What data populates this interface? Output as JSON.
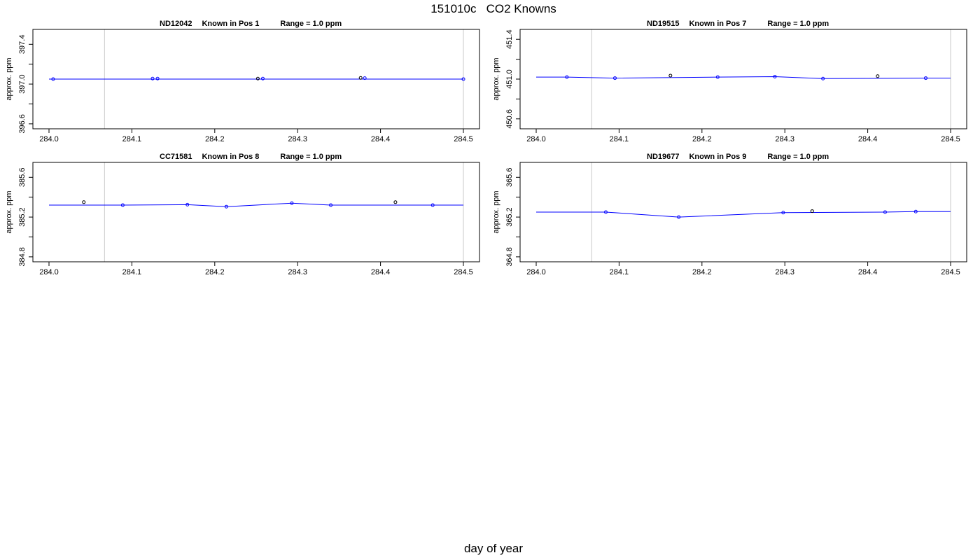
{
  "figure": {
    "title": "151010c   CO2 Knowns",
    "xlabel": "day of year"
  },
  "chart_data": [
    {
      "type": "scatter",
      "title_parts": [
        "ND12042",
        "Known in Pos 1",
        "Range = 1.0 ppm"
      ],
      "ylabel": "approx. ppm",
      "xlim": [
        284.0,
        284.5
      ],
      "ylim": [
        396.55,
        397.55
      ],
      "xticks": [
        "284.0",
        "284.1",
        "284.2",
        "284.3",
        "284.4",
        "284.5"
      ],
      "yticks": [
        "396.6",
        "397.0",
        "397.4"
      ],
      "vlines": [
        284.067,
        284.5
      ],
      "fit_line": {
        "x": [
          284.0,
          284.5
        ],
        "y": [
          397.05,
          397.05
        ]
      },
      "series": [
        {
          "color": "#0000ff",
          "points": [
            [
              284.005,
              397.05
            ],
            [
              284.125,
              397.055
            ],
            [
              284.131,
              397.055
            ],
            [
              284.258,
              397.055
            ],
            [
              284.381,
              397.06
            ],
            [
              284.5,
              397.05
            ]
          ]
        },
        {
          "color": "#000000",
          "points": [
            [
              284.252,
              397.055
            ],
            [
              284.376,
              397.062
            ]
          ]
        }
      ]
    },
    {
      "type": "scatter",
      "title_parts": [
        "ND19515",
        "Known in Pos 7",
        "Range = 1.0 ppm"
      ],
      "ylabel": "approx. ppm",
      "xlim": [
        284.0,
        284.5
      ],
      "ylim": [
        450.5,
        451.5
      ],
      "xticks": [
        "284.0",
        "284.1",
        "284.2",
        "284.3",
        "284.4",
        "284.5"
      ],
      "yticks": [
        "450.6",
        "451.0",
        "451.4"
      ],
      "vlines": [
        284.067,
        284.5
      ],
      "fit_line": {
        "x": [
          284.0,
          284.037,
          284.095,
          284.219,
          284.288,
          284.346,
          284.47,
          284.5
        ],
        "y": [
          451.02,
          451.02,
          451.01,
          451.02,
          451.025,
          451.005,
          451.01,
          451.01
        ]
      },
      "series": [
        {
          "color": "#0000ff",
          "points": [
            [
              284.037,
              451.02
            ],
            [
              284.095,
              451.01
            ],
            [
              284.219,
              451.02
            ],
            [
              284.288,
              451.025
            ],
            [
              284.346,
              451.005
            ],
            [
              284.47,
              451.01
            ]
          ]
        },
        {
          "color": "#000000",
          "points": [
            [
              284.162,
              451.035
            ],
            [
              284.412,
              451.03
            ]
          ]
        }
      ]
    },
    {
      "type": "scatter",
      "title_parts": [
        "CC71581",
        "Known in Pos 8",
        "Range = 1.0 ppm"
      ],
      "ylabel": "approx. ppm",
      "xlim": [
        284.0,
        284.5
      ],
      "ylim": [
        384.75,
        385.75
      ],
      "xticks": [
        "284.0",
        "284.1",
        "284.2",
        "284.3",
        "284.4",
        "284.5"
      ],
      "yticks": [
        "384.8",
        "385.2",
        "385.6"
      ],
      "vlines": [
        284.067,
        284.5
      ],
      "fit_line": {
        "x": [
          284.0,
          284.089,
          284.167,
          284.214,
          284.293,
          284.34,
          284.463,
          284.5
        ],
        "y": [
          385.32,
          385.32,
          385.325,
          385.305,
          385.34,
          385.32,
          385.32,
          385.32
        ]
      },
      "series": [
        {
          "color": "#0000ff",
          "points": [
            [
              284.089,
              385.32
            ],
            [
              284.167,
              385.325
            ],
            [
              284.214,
              385.305
            ],
            [
              284.293,
              385.34
            ],
            [
              284.34,
              385.32
            ],
            [
              284.463,
              385.32
            ]
          ]
        },
        {
          "color": "#000000",
          "points": [
            [
              284.042,
              385.35
            ],
            [
              284.418,
              385.35
            ]
          ]
        }
      ]
    },
    {
      "type": "scatter",
      "title_parts": [
        "ND19677",
        "Known in Pos 9",
        "Range = 1.0 ppm"
      ],
      "ylabel": "approx. ppm",
      "xlim": [
        284.0,
        284.5
      ],
      "ylim": [
        364.75,
        365.75
      ],
      "xticks": [
        "284.0",
        "284.1",
        "284.2",
        "284.3",
        "284.4",
        "284.5"
      ],
      "yticks": [
        "364.8",
        "365.2",
        "365.6"
      ],
      "vlines": [
        284.067,
        284.5
      ],
      "fit_line": {
        "x": [
          284.0,
          284.084,
          284.172,
          284.298,
          284.421,
          284.458,
          284.5
        ],
        "y": [
          365.25,
          365.25,
          365.2,
          365.245,
          365.25,
          365.255,
          365.255
        ]
      },
      "series": [
        {
          "color": "#0000ff",
          "points": [
            [
              284.084,
              365.25
            ],
            [
              284.172,
              365.2
            ],
            [
              284.298,
              365.245
            ],
            [
              284.421,
              365.25
            ],
            [
              284.458,
              365.255
            ]
          ]
        },
        {
          "color": "#000000",
          "points": [
            [
              284.333,
              365.26
            ]
          ]
        }
      ]
    }
  ]
}
